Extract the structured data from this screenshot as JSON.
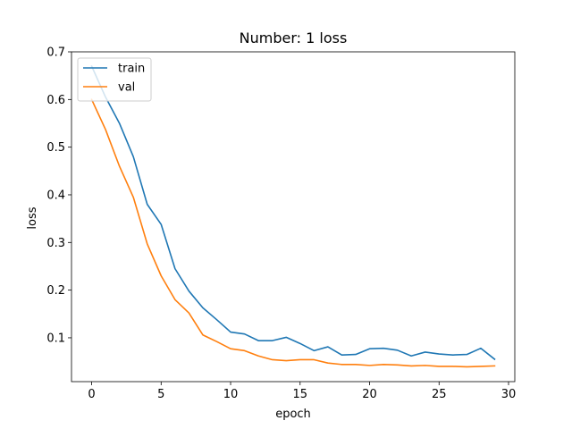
{
  "chart_data": {
    "type": "line",
    "title": "Number: 1 loss",
    "xlabel": "epoch",
    "ylabel": "loss",
    "xlim": [
      -1.45,
      30.45
    ],
    "ylim": [
      0.008,
      0.7
    ],
    "xticks": [
      0,
      5,
      10,
      15,
      20,
      25,
      30
    ],
    "yticks": [
      0.1,
      0.2,
      0.3,
      0.4,
      0.5,
      0.6,
      0.7
    ],
    "grid": false,
    "legend_position": "upper-left",
    "x": [
      0,
      1,
      2,
      3,
      4,
      5,
      6,
      7,
      8,
      9,
      10,
      11,
      12,
      13,
      14,
      15,
      16,
      17,
      18,
      19,
      20,
      21,
      22,
      23,
      24,
      25,
      26,
      27,
      28,
      29
    ],
    "series": [
      {
        "name": "train",
        "color": "#1f77b4",
        "values": [
          0.67,
          0.605,
          0.55,
          0.48,
          0.38,
          0.338,
          0.245,
          0.198,
          0.163,
          0.138,
          0.112,
          0.108,
          0.094,
          0.094,
          0.101,
          0.088,
          0.073,
          0.081,
          0.064,
          0.065,
          0.077,
          0.078,
          0.074,
          0.062,
          0.07,
          0.066,
          0.064,
          0.065,
          0.078,
          0.055
        ]
      },
      {
        "name": "val",
        "color": "#ff7f0e",
        "values": [
          0.6,
          0.537,
          0.46,
          0.395,
          0.297,
          0.23,
          0.18,
          0.152,
          0.106,
          0.092,
          0.077,
          0.073,
          0.062,
          0.054,
          0.052,
          0.054,
          0.054,
          0.047,
          0.044,
          0.044,
          0.042,
          0.044,
          0.043,
          0.041,
          0.042,
          0.04,
          0.04,
          0.039,
          0.04,
          0.041
        ]
      }
    ]
  }
}
